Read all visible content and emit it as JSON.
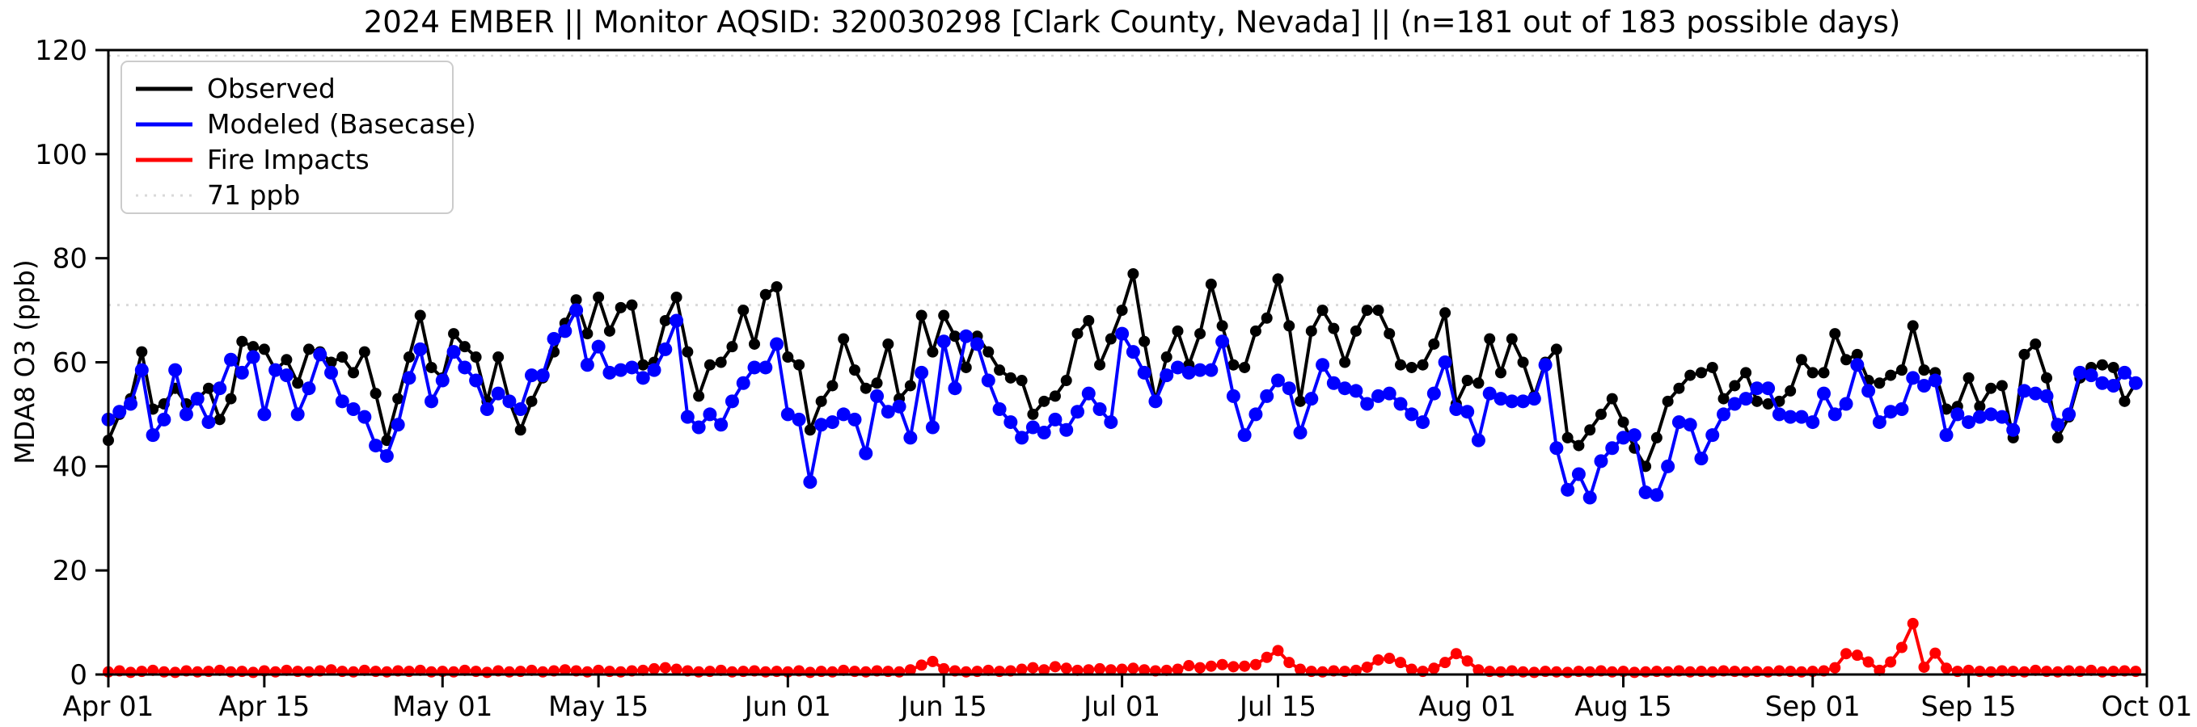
{
  "title": "2024 EMBER || Monitor AQSID: 320030298 [Clark County, Nevada] || (n=181 out of 183 possible days)",
  "y_axis": {
    "label": "MDA8 O3 (ppb)",
    "ticks": [
      0,
      20,
      40,
      60,
      80,
      100,
      120
    ],
    "min": 0,
    "max": 120
  },
  "x_axis": {
    "ticks": [
      {
        "label": "Apr 01",
        "day": 0
      },
      {
        "label": "Apr 15",
        "day": 14
      },
      {
        "label": "May 01",
        "day": 30
      },
      {
        "label": "May 15",
        "day": 44
      },
      {
        "label": "Jun 01",
        "day": 61
      },
      {
        "label": "Jun 15",
        "day": 75
      },
      {
        "label": "Jul 01",
        "day": 91
      },
      {
        "label": "Jul 15",
        "day": 105
      },
      {
        "label": "Aug 01",
        "day": 122
      },
      {
        "label": "Aug 15",
        "day": 136
      },
      {
        "label": "Sep 01",
        "day": 153
      },
      {
        "label": "Sep 15",
        "day": 167
      },
      {
        "label": "Oct 01",
        "day": 183
      }
    ]
  },
  "legend": [
    {
      "label": "Observed",
      "color": "#000000",
      "style": "solid"
    },
    {
      "label": "Modeled (Basecase)",
      "color": "#0000ff",
      "style": "solid"
    },
    {
      "label": "Fire Impacts",
      "color": "#ff0000",
      "style": "solid"
    },
    {
      "label": "71 ppb",
      "color": "#d9d9d9",
      "style": "dotted"
    }
  ],
  "reference_line": {
    "label": "71 ppb",
    "value": 71,
    "color": "#d9d9d9"
  },
  "chart_data": {
    "type": "line",
    "start_date": "2024-04-01",
    "end_date": "2024-09-30",
    "n_days": 183,
    "n_observed_days": 181,
    "xlabel": "",
    "ylabel": "MDA8 O3 (ppb)",
    "ylim": [
      0,
      120
    ],
    "grid": false,
    "legend_position": "upper-left",
    "series": [
      {
        "name": "Observed",
        "color": "#000000",
        "marker_radius": 7,
        "values": [
          45,
          50,
          53,
          62,
          51,
          52,
          55,
          52,
          53,
          55,
          49,
          53,
          64,
          63,
          62.5,
          58.5,
          60.5,
          56,
          62.5,
          62,
          60,
          61,
          58,
          62,
          54,
          45,
          53,
          61,
          69,
          59,
          57,
          65.5,
          63,
          61,
          52.5,
          61,
          52.5,
          47,
          52.5,
          57,
          62,
          67.5,
          72,
          65.5,
          72.5,
          66,
          70.5,
          71,
          59.5,
          60,
          68,
          72.5,
          62,
          53.5,
          59.5,
          60,
          63,
          70,
          63.5,
          73,
          74.5,
          61,
          59.5,
          47,
          52.5,
          55.5,
          64.5,
          58.5,
          55,
          56,
          63.5,
          53,
          55.5,
          69,
          62,
          69,
          65,
          59,
          65,
          62,
          58.5,
          57,
          56.5,
          50,
          52.5,
          53.5,
          56.5,
          65.5,
          68,
          59.5,
          64.5,
          70,
          77,
          64,
          52.5,
          61,
          66,
          59.5,
          65.5,
          75,
          67,
          59.5,
          59,
          66,
          68.5,
          76,
          67,
          52.5,
          66,
          70,
          66.5,
          60,
          66,
          70,
          70,
          65.5,
          59.5,
          59,
          59.5,
          63.5,
          69.5,
          52,
          56.5,
          56,
          64.5,
          58,
          64.5,
          60,
          53.5,
          60,
          62.5,
          45.5,
          44,
          47,
          50,
          53,
          48.5,
          43.5,
          40,
          45.5,
          52.5,
          55,
          57.5,
          58,
          59,
          53,
          55.5,
          58,
          52.5,
          52,
          52.5,
          54.5,
          60.5,
          58,
          58,
          65.5,
          60.5,
          61.5,
          56.5,
          56,
          57.5,
          58.5,
          67,
          58.5,
          58,
          51,
          51.5,
          57,
          51.5,
          55,
          55.5,
          45.5,
          61.5,
          63.5,
          57,
          45.5,
          49.5,
          57,
          59,
          59.5,
          59,
          52.5,
          56
        ]
      },
      {
        "name": "Modeled (Basecase)",
        "color": "#0000ff",
        "marker_radius": 8.5,
        "values": [
          49,
          50.5,
          52,
          58.5,
          46,
          49,
          58.5,
          50,
          53,
          48.5,
          55,
          60.5,
          58,
          61,
          50,
          58.5,
          57.5,
          50,
          55,
          61.5,
          58,
          52.5,
          51,
          49.5,
          44,
          42,
          48,
          57,
          62.5,
          52.5,
          56.5,
          62,
          59,
          56.5,
          51,
          54,
          52.5,
          51,
          57.5,
          57.5,
          64.5,
          66,
          70,
          59.5,
          63,
          58,
          58.5,
          59,
          57,
          58.5,
          62.5,
          68,
          49.5,
          47.5,
          50,
          48,
          52.5,
          56,
          59,
          59,
          63.5,
          50,
          49,
          37,
          48,
          48.5,
          50,
          49,
          42.5,
          53.5,
          50.5,
          51.5,
          45.5,
          58,
          47.5,
          64,
          55,
          65,
          63.5,
          56.5,
          51,
          48.5,
          45.5,
          47.5,
          46.5,
          49,
          47,
          50.5,
          54,
          51,
          48.5,
          65.5,
          62,
          58,
          52.5,
          57.5,
          59,
          58,
          58.5,
          58.5,
          64,
          53.5,
          46,
          50,
          53.5,
          56.5,
          55,
          46.5,
          53,
          59.5,
          56,
          55,
          54.5,
          52,
          53.5,
          54,
          52,
          50,
          48.5,
          54,
          60,
          51,
          50.5,
          45,
          54,
          53,
          52.5,
          52.5,
          53,
          59.5,
          43.5,
          35.5,
          38.5,
          34,
          41,
          43.5,
          45.5,
          46,
          35,
          34.5,
          40,
          48.5,
          48,
          41.5,
          46,
          50,
          52,
          53,
          55,
          55,
          50,
          49.5,
          49.5,
          48.5,
          54,
          50,
          52,
          59.5,
          54.5,
          48.5,
          50.5,
          51,
          57,
          55.5,
          56.5,
          46,
          50,
          48.5,
          49.5,
          50,
          49.5,
          47,
          54.5,
          54,
          53.5,
          48,
          50,
          58,
          57.5,
          56,
          55.5,
          58,
          56
        ]
      },
      {
        "name": "Fire Impacts",
        "color": "#ff0000",
        "marker_radius": 7,
        "values": [
          0.5,
          0.7,
          0.4,
          0.6,
          0.8,
          0.5,
          0.4,
          0.7,
          0.5,
          0.6,
          0.8,
          0.5,
          0.6,
          0.4,
          0.7,
          0.5,
          0.8,
          0.6,
          0.5,
          0.7,
          0.9,
          0.6,
          0.5,
          0.8,
          0.6,
          0.5,
          0.7,
          0.6,
          0.8,
          0.5,
          0.6,
          0.5,
          0.8,
          0.6,
          0.4,
          0.7,
          0.5,
          0.6,
          0.8,
          0.5,
          0.7,
          0.9,
          0.7,
          0.5,
          0.8,
          0.6,
          0.5,
          0.7,
          0.8,
          1.1,
          1.3,
          1.0,
          0.7,
          0.5,
          0.6,
          0.8,
          0.5,
          0.6,
          0.7,
          0.5,
          0.6,
          0.5,
          0.7,
          0.4,
          0.6,
          0.5,
          0.8,
          0.6,
          0.5,
          0.7,
          0.6,
          0.5,
          0.9,
          1.8,
          2.5,
          1.1,
          0.7,
          0.5,
          0.6,
          0.8,
          0.6,
          0.7,
          1.0,
          1.3,
          0.9,
          1.5,
          1.2,
          0.8,
          0.9,
          1.1,
          0.9,
          1.0,
          1.2,
          0.9,
          0.7,
          0.8,
          1.0,
          1.7,
          1.3,
          1.6,
          1.9,
          1.5,
          1.6,
          1.9,
          3.3,
          4.6,
          2.3,
          1.0,
          0.6,
          0.5,
          0.7,
          0.6,
          0.8,
          1.4,
          2.8,
          3.1,
          2.3,
          1.0,
          0.6,
          1.2,
          2.3,
          4.0,
          2.6,
          0.9,
          0.6,
          0.5,
          0.7,
          0.5,
          0.4,
          0.6,
          0.5,
          0.4,
          0.6,
          0.5,
          0.7,
          0.5,
          0.6,
          0.4,
          0.5,
          0.6,
          0.5,
          0.7,
          0.5,
          0.6,
          0.5,
          0.7,
          0.6,
          0.5,
          0.6,
          0.5,
          0.7,
          0.6,
          0.5,
          0.6,
          0.7,
          1.3,
          4.0,
          3.7,
          2.4,
          0.8,
          2.4,
          5.2,
          9.8,
          1.4,
          4.1,
          1.2,
          0.6,
          0.8,
          0.6,
          0.5,
          0.7,
          0.6,
          0.5,
          0.8,
          0.6,
          0.5,
          0.7,
          0.6,
          0.8,
          0.5,
          0.6,
          0.7,
          0.6
        ]
      }
    ]
  }
}
